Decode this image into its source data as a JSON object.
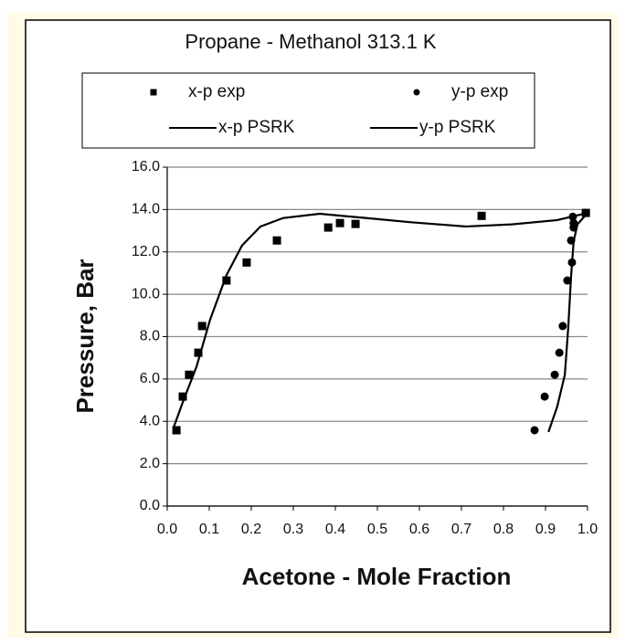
{
  "chart_data": {
    "type": "scatter",
    "title": "Propane - Methanol 313.1 K",
    "xlabel": "Acetone - Mole Fraction",
    "ylabel": "Pressure, Bar",
    "xlim": [
      0,
      1
    ],
    "ylim": [
      0,
      16
    ],
    "xticks": [
      {
        "value": 0,
        "label": "0.0"
      },
      0.1,
      0.2,
      0.3,
      0.4,
      0.5,
      0.6,
      0.7,
      0.8,
      0.9,
      {
        "value": 1,
        "label": "1.0"
      }
    ],
    "yticks": [
      {
        "value": 0,
        "label": "0.0"
      },
      {
        "value": 2,
        "label": "2.0"
      },
      {
        "value": 4,
        "label": "4.0"
      },
      {
        "value": 6,
        "label": "6.0"
      },
      {
        "value": 8,
        "label": "8.0"
      },
      {
        "value": 10,
        "label": "10.0"
      },
      {
        "value": 12,
        "label": "12.0"
      },
      {
        "value": 14,
        "label": "14.0"
      },
      {
        "value": 16,
        "label": "16.0"
      }
    ],
    "grid": true,
    "series": [
      {
        "name": "x-p exp",
        "color": "#000000",
        "style": "square",
        "x": [
          0.022,
          0.037,
          0.052,
          0.074,
          0.083,
          0.141,
          0.189,
          0.261,
          0.383,
          0.411,
          0.448,
          0.748,
          0.996
        ],
        "values": [
          3.58,
          5.17,
          6.2,
          7.24,
          8.5,
          10.65,
          11.5,
          12.54,
          13.15,
          13.36,
          13.32,
          13.7,
          13.84
        ]
      },
      {
        "name": "y-p exp",
        "color": "#000000",
        "style": "circle",
        "x": [
          0.874,
          0.898,
          0.922,
          0.933,
          0.941,
          0.952,
          0.963,
          0.961,
          0.967,
          0.967,
          0.965,
          0.996
        ],
        "values": [
          3.58,
          5.17,
          6.2,
          7.24,
          8.5,
          10.65,
          11.5,
          12.54,
          13.15,
          13.36,
          13.66,
          13.84
        ]
      },
      {
        "name": "x-p PSRK",
        "color": "#000000",
        "style": "line",
        "x": [
          0.015,
          0.037,
          0.07,
          0.102,
          0.141,
          0.178,
          0.222,
          0.276,
          0.363,
          0.472,
          0.58,
          0.711,
          0.82,
          0.928,
          1.0
        ],
        "values": [
          3.7,
          4.9,
          6.6,
          8.8,
          10.9,
          12.3,
          13.2,
          13.6,
          13.8,
          13.6,
          13.4,
          13.2,
          13.3,
          13.5,
          13.84
        ]
      },
      {
        "name": "y-p PSRK",
        "color": "#000000",
        "style": "line",
        "x": [
          0.907,
          0.928,
          0.946,
          0.954,
          0.961,
          0.967,
          0.976,
          1.0
        ],
        "values": [
          3.5,
          4.7,
          6.2,
          8.4,
          10.9,
          12.5,
          13.3,
          13.84
        ]
      }
    ]
  }
}
